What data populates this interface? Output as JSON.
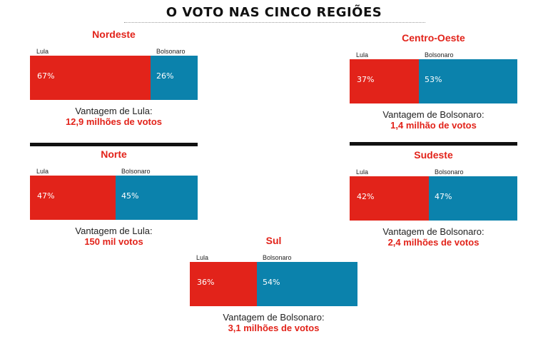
{
  "title": "O VOTO NAS CINCO REGIÕES",
  "colors": {
    "lula": "#e2231a",
    "bolsonaro": "#0b82ac",
    "accent": "#e2231a"
  },
  "chart_data": [
    {
      "type": "bar",
      "region": "Nordeste",
      "categories": [
        "Lula",
        "Bolsonaro"
      ],
      "values": [
        67,
        26
      ],
      "unit": "%",
      "advantage_label": "Vantagem de Lula:",
      "advantage_value": "12,9 milhões de votos"
    },
    {
      "type": "bar",
      "region": "Centro-Oeste",
      "categories": [
        "Lula",
        "Bolsonaro"
      ],
      "values": [
        37,
        53
      ],
      "unit": "%",
      "advantage_label": "Vantagem de Bolsonaro:",
      "advantage_value": "1,4 milhão de votos"
    },
    {
      "type": "bar",
      "region": "Norte",
      "categories": [
        "Lula",
        "Bolsonaro"
      ],
      "values": [
        47,
        45
      ],
      "unit": "%",
      "advantage_label": "Vantagem de Lula:",
      "advantage_value": "150 mil votos"
    },
    {
      "type": "bar",
      "region": "Sudeste",
      "categories": [
        "Lula",
        "Bolsonaro"
      ],
      "values": [
        42,
        47
      ],
      "unit": "%",
      "advantage_label": "Vantagem de Bolsonaro:",
      "advantage_value": "2,4 milhões de votos"
    },
    {
      "type": "bar",
      "region": "Sul",
      "categories": [
        "Lula",
        "Bolsonaro"
      ],
      "values": [
        36,
        54
      ],
      "unit": "%",
      "advantage_label": "Vantagem de Bolsonaro:",
      "advantage_value": "3,1 milhões de votos"
    }
  ]
}
